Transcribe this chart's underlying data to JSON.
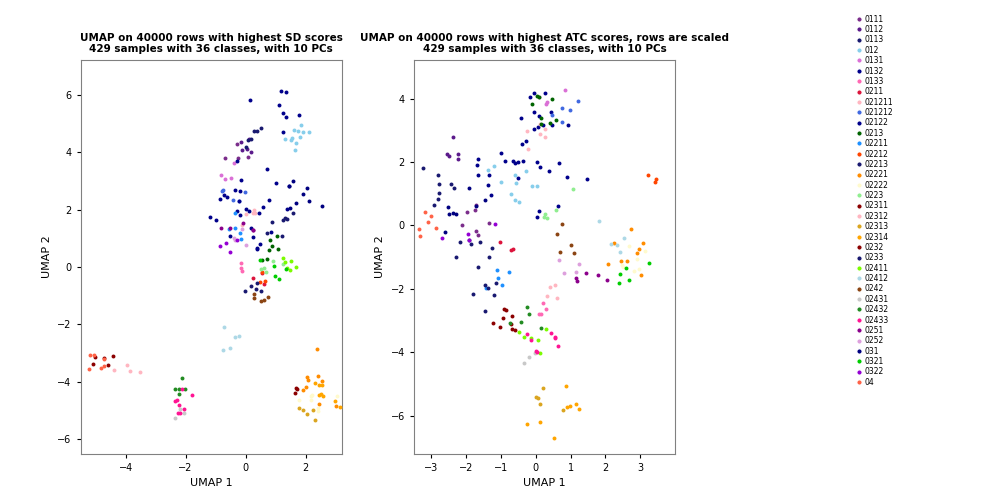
{
  "title1": "UMAP on 40000 rows with highest SD scores\n429 samples with 36 classes, with 10 PCs",
  "title2": "UMAP on 40000 rows with highest ATC scores, rows are scaled\n429 samples with 36 classes, with 10 PCs",
  "xlabel": "UMAP 1",
  "ylabel": "UMAP 2",
  "classes": [
    "0111",
    "0112",
    "0113",
    "012",
    "0131",
    "0132",
    "0133",
    "0211",
    "021211",
    "021212",
    "02122",
    "0213",
    "02211",
    "02212",
    "02213",
    "02221",
    "02222",
    "0223",
    "02311",
    "02312",
    "02313",
    "02314",
    "0232",
    "0233",
    "02411",
    "02412",
    "0242",
    "02431",
    "02432",
    "02433",
    "0251",
    "0252",
    "031",
    "0321",
    "0322",
    "04"
  ],
  "color_map": {
    "0111": "#7B2D8B",
    "0112": "#5B1A8B",
    "0113": "#191970",
    "012": "#87CEEB",
    "0131": "#DA70D6",
    "0132": "#00008B",
    "0133": "#FF69B4",
    "0211": "#DC143C",
    "021211": "#FFB6C1",
    "021212": "#4169E1",
    "02122": "#00008B",
    "0213": "#006400",
    "02211": "#1E90FF",
    "02212": "#FF4500",
    "02213": "#191970",
    "02221": "#FF8C00",
    "02222": "#FFFACD",
    "0223": "#90EE90",
    "02311": "#8B0000",
    "02312": "#FFB6C1",
    "02313": "#DAA520",
    "02314": "#FFA500",
    "0232": "#8B0000",
    "0233": "#191970",
    "02411": "#7CFC00",
    "02412": "#ADD8E6",
    "0242": "#8B4513",
    "02431": "#C8C8C8",
    "02432": "#228B22",
    "02433": "#FF1493",
    "0251": "#8B008B",
    "0252": "#DDA0DD",
    "031": "#000080",
    "0321": "#00CD00",
    "0322": "#9400D3",
    "04": "#FF6347"
  },
  "plot1_xlim": [
    -5.5,
    3.2
  ],
  "plot1_ylim": [
    -6.5,
    7.2
  ],
  "plot1_xticks": [
    -4,
    -2,
    0,
    2
  ],
  "plot1_yticks": [
    -6,
    -4,
    -2,
    0,
    2,
    4,
    6
  ],
  "plot2_xlim": [
    -3.5,
    4.0
  ],
  "plot2_ylim": [
    -7.2,
    5.2
  ],
  "plot2_xticks": [
    -3,
    -2,
    -1,
    0,
    1,
    2,
    3
  ],
  "plot2_yticks": [
    -6,
    -4,
    -2,
    0,
    2,
    4
  ],
  "background_color": "#ffffff",
  "point_size": 8
}
